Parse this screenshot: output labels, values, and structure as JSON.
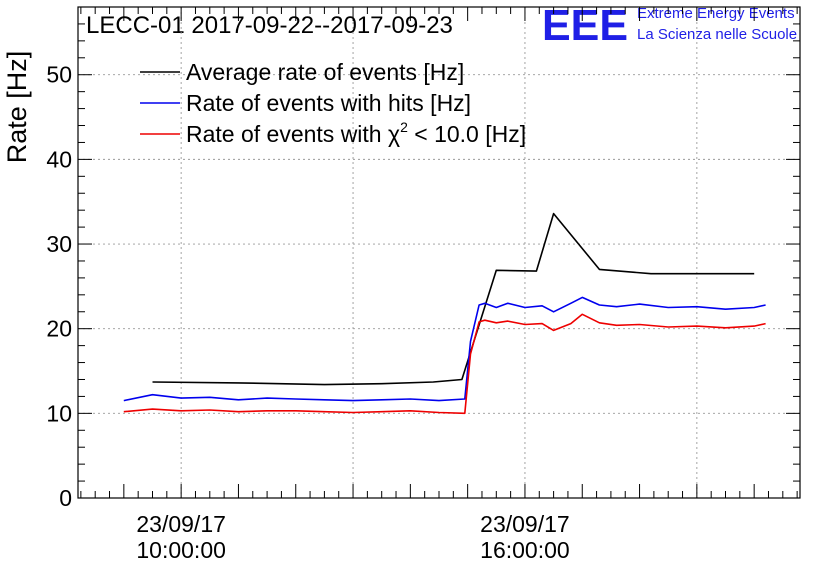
{
  "chart_data": {
    "type": "line",
    "title": "LECC-01 2017-09-22--2017-09-23",
    "ylabel": "Rate [Hz]",
    "xlabel": "",
    "ylim": [
      0,
      58
    ],
    "yticks": [
      0,
      10,
      20,
      30,
      40,
      50
    ],
    "x_unit": "hours of day, 23/09/17",
    "xlim": [
      8.2,
      20.8
    ],
    "xtick_labels": [
      {
        "x": 10,
        "date": "23/09/17",
        "time": "10:00:00"
      },
      {
        "x": 16,
        "date": "23/09/17",
        "time": "16:00:00"
      }
    ],
    "grid": true,
    "legend_position": "top-left",
    "series": [
      {
        "name": "Average rate of events [Hz]",
        "color": "#000000",
        "x": [
          9.5,
          11.0,
          12.5,
          13.5,
          14.4,
          14.9,
          15.5,
          16.2,
          16.5,
          17.3,
          18.2,
          19.2,
          20.0
        ],
        "y": [
          13.7,
          13.6,
          13.4,
          13.5,
          13.7,
          14.0,
          26.9,
          26.8,
          33.6,
          27.0,
          26.5,
          26.5,
          26.5
        ]
      },
      {
        "name": "Rate of events with hits [Hz]",
        "color": "#0000ee",
        "x": [
          9.0,
          9.5,
          10.0,
          10.5,
          11.0,
          11.5,
          12.0,
          12.5,
          13.0,
          13.5,
          14.0,
          14.5,
          14.95,
          15.05,
          15.2,
          15.3,
          15.5,
          15.7,
          16.0,
          16.3,
          16.5,
          16.8,
          17.0,
          17.3,
          17.6,
          18.0,
          18.5,
          19.0,
          19.5,
          20.0,
          20.2
        ],
        "y": [
          11.5,
          12.2,
          11.8,
          11.9,
          11.6,
          11.8,
          11.7,
          11.6,
          11.5,
          11.6,
          11.7,
          11.5,
          11.7,
          18.5,
          22.8,
          23.0,
          22.5,
          23.0,
          22.5,
          22.7,
          22.0,
          23.0,
          23.7,
          22.8,
          22.6,
          22.9,
          22.5,
          22.6,
          22.3,
          22.5,
          22.8
        ]
      },
      {
        "name": "Rate of events with χ² < 10.0 [Hz]",
        "color": "#ee0000",
        "x": [
          9.0,
          9.5,
          10.0,
          10.5,
          11.0,
          11.5,
          12.0,
          12.5,
          13.0,
          13.5,
          14.0,
          14.5,
          14.95,
          15.05,
          15.2,
          15.3,
          15.5,
          15.7,
          16.0,
          16.3,
          16.5,
          16.8,
          17.0,
          17.3,
          17.6,
          18.0,
          18.5,
          19.0,
          19.5,
          20.0,
          20.2
        ],
        "y": [
          10.2,
          10.5,
          10.3,
          10.4,
          10.2,
          10.3,
          10.3,
          10.2,
          10.1,
          10.2,
          10.3,
          10.1,
          10.0,
          17.0,
          20.8,
          21.0,
          20.7,
          20.9,
          20.5,
          20.6,
          19.8,
          20.6,
          21.7,
          20.7,
          20.4,
          20.5,
          20.2,
          20.3,
          20.1,
          20.3,
          20.6
        ]
      }
    ]
  },
  "legend": {
    "items": [
      {
        "color": "#000000",
        "label": "Average rate of events [Hz]"
      },
      {
        "color": "#0000ee",
        "label": "Rate of events with hits [Hz]"
      },
      {
        "color": "#ee0000",
        "label_pre": "Rate of events with ",
        "chi": "χ",
        "sup": "2",
        "label_post": " < 10.0 [Hz]"
      }
    ]
  },
  "brand": {
    "logo": "EEE",
    "line1": "Extreme Energy Events",
    "line2": "La Scienza nelle Scuole",
    "color": "#1f1fe6"
  }
}
